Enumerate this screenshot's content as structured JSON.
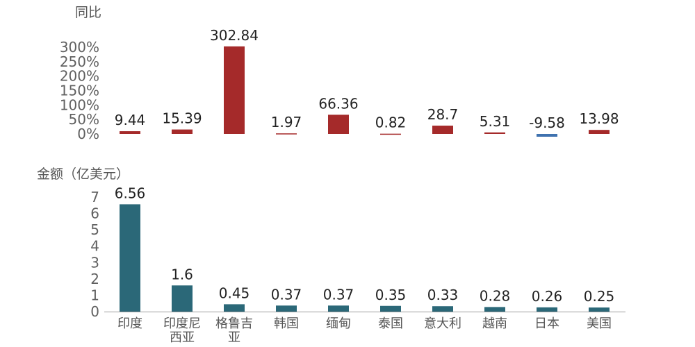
{
  "chart_data": [
    {
      "type": "bar",
      "ylabel": "同比",
      "y_ticks": [
        "0%",
        "50%",
        "100%",
        "150%",
        "200%",
        "250%",
        "300%"
      ],
      "ylim": [
        0,
        300
      ],
      "categories": [
        "印度",
        "印度尼西亚",
        "格鲁吉亚",
        "韩国",
        "缅甸",
        "泰国",
        "意大利",
        "越南",
        "日本",
        "美国"
      ],
      "values": [
        9.44,
        15.39,
        302.84,
        1.97,
        66.36,
        0.82,
        28.7,
        5.31,
        -9.58,
        13.98
      ],
      "value_labels": [
        "9.44",
        "15.39",
        "302.84",
        "1.97",
        "66.36",
        "0.82",
        "28.7",
        "5.31",
        "-9.58",
        "13.98"
      ],
      "colors": {
        "positive": "#a52a2a",
        "negative": "#3f72af"
      },
      "grid": false
    },
    {
      "type": "bar",
      "ylabel": "金额（亿美元）",
      "y_ticks": [
        "0",
        "1",
        "2",
        "3",
        "4",
        "5",
        "6",
        "7"
      ],
      "ylim": [
        0,
        7
      ],
      "categories": [
        "印度",
        "印度尼西亚",
        "格鲁吉亚",
        "韩国",
        "缅甸",
        "泰国",
        "意大利",
        "越南",
        "日本",
        "美国"
      ],
      "category_labels": [
        [
          "印度"
        ],
        [
          "印度尼",
          "西亚"
        ],
        [
          "格鲁吉",
          "亚"
        ],
        [
          "韩国"
        ],
        [
          "缅甸"
        ],
        [
          "泰国"
        ],
        [
          "意大利"
        ],
        [
          "越南"
        ],
        [
          "日本"
        ],
        [
          "美国"
        ]
      ],
      "values": [
        6.56,
        1.6,
        0.45,
        0.37,
        0.37,
        0.35,
        0.33,
        0.28,
        0.26,
        0.25
      ],
      "value_labels": [
        "6.56",
        "1.6",
        "0.45",
        "0.37",
        "0.37",
        "0.35",
        "0.33",
        "0.28",
        "0.26",
        "0.25"
      ],
      "colors": {
        "bar": "#2b6878",
        "axis": "#9a9a9a"
      },
      "grid": false
    }
  ]
}
